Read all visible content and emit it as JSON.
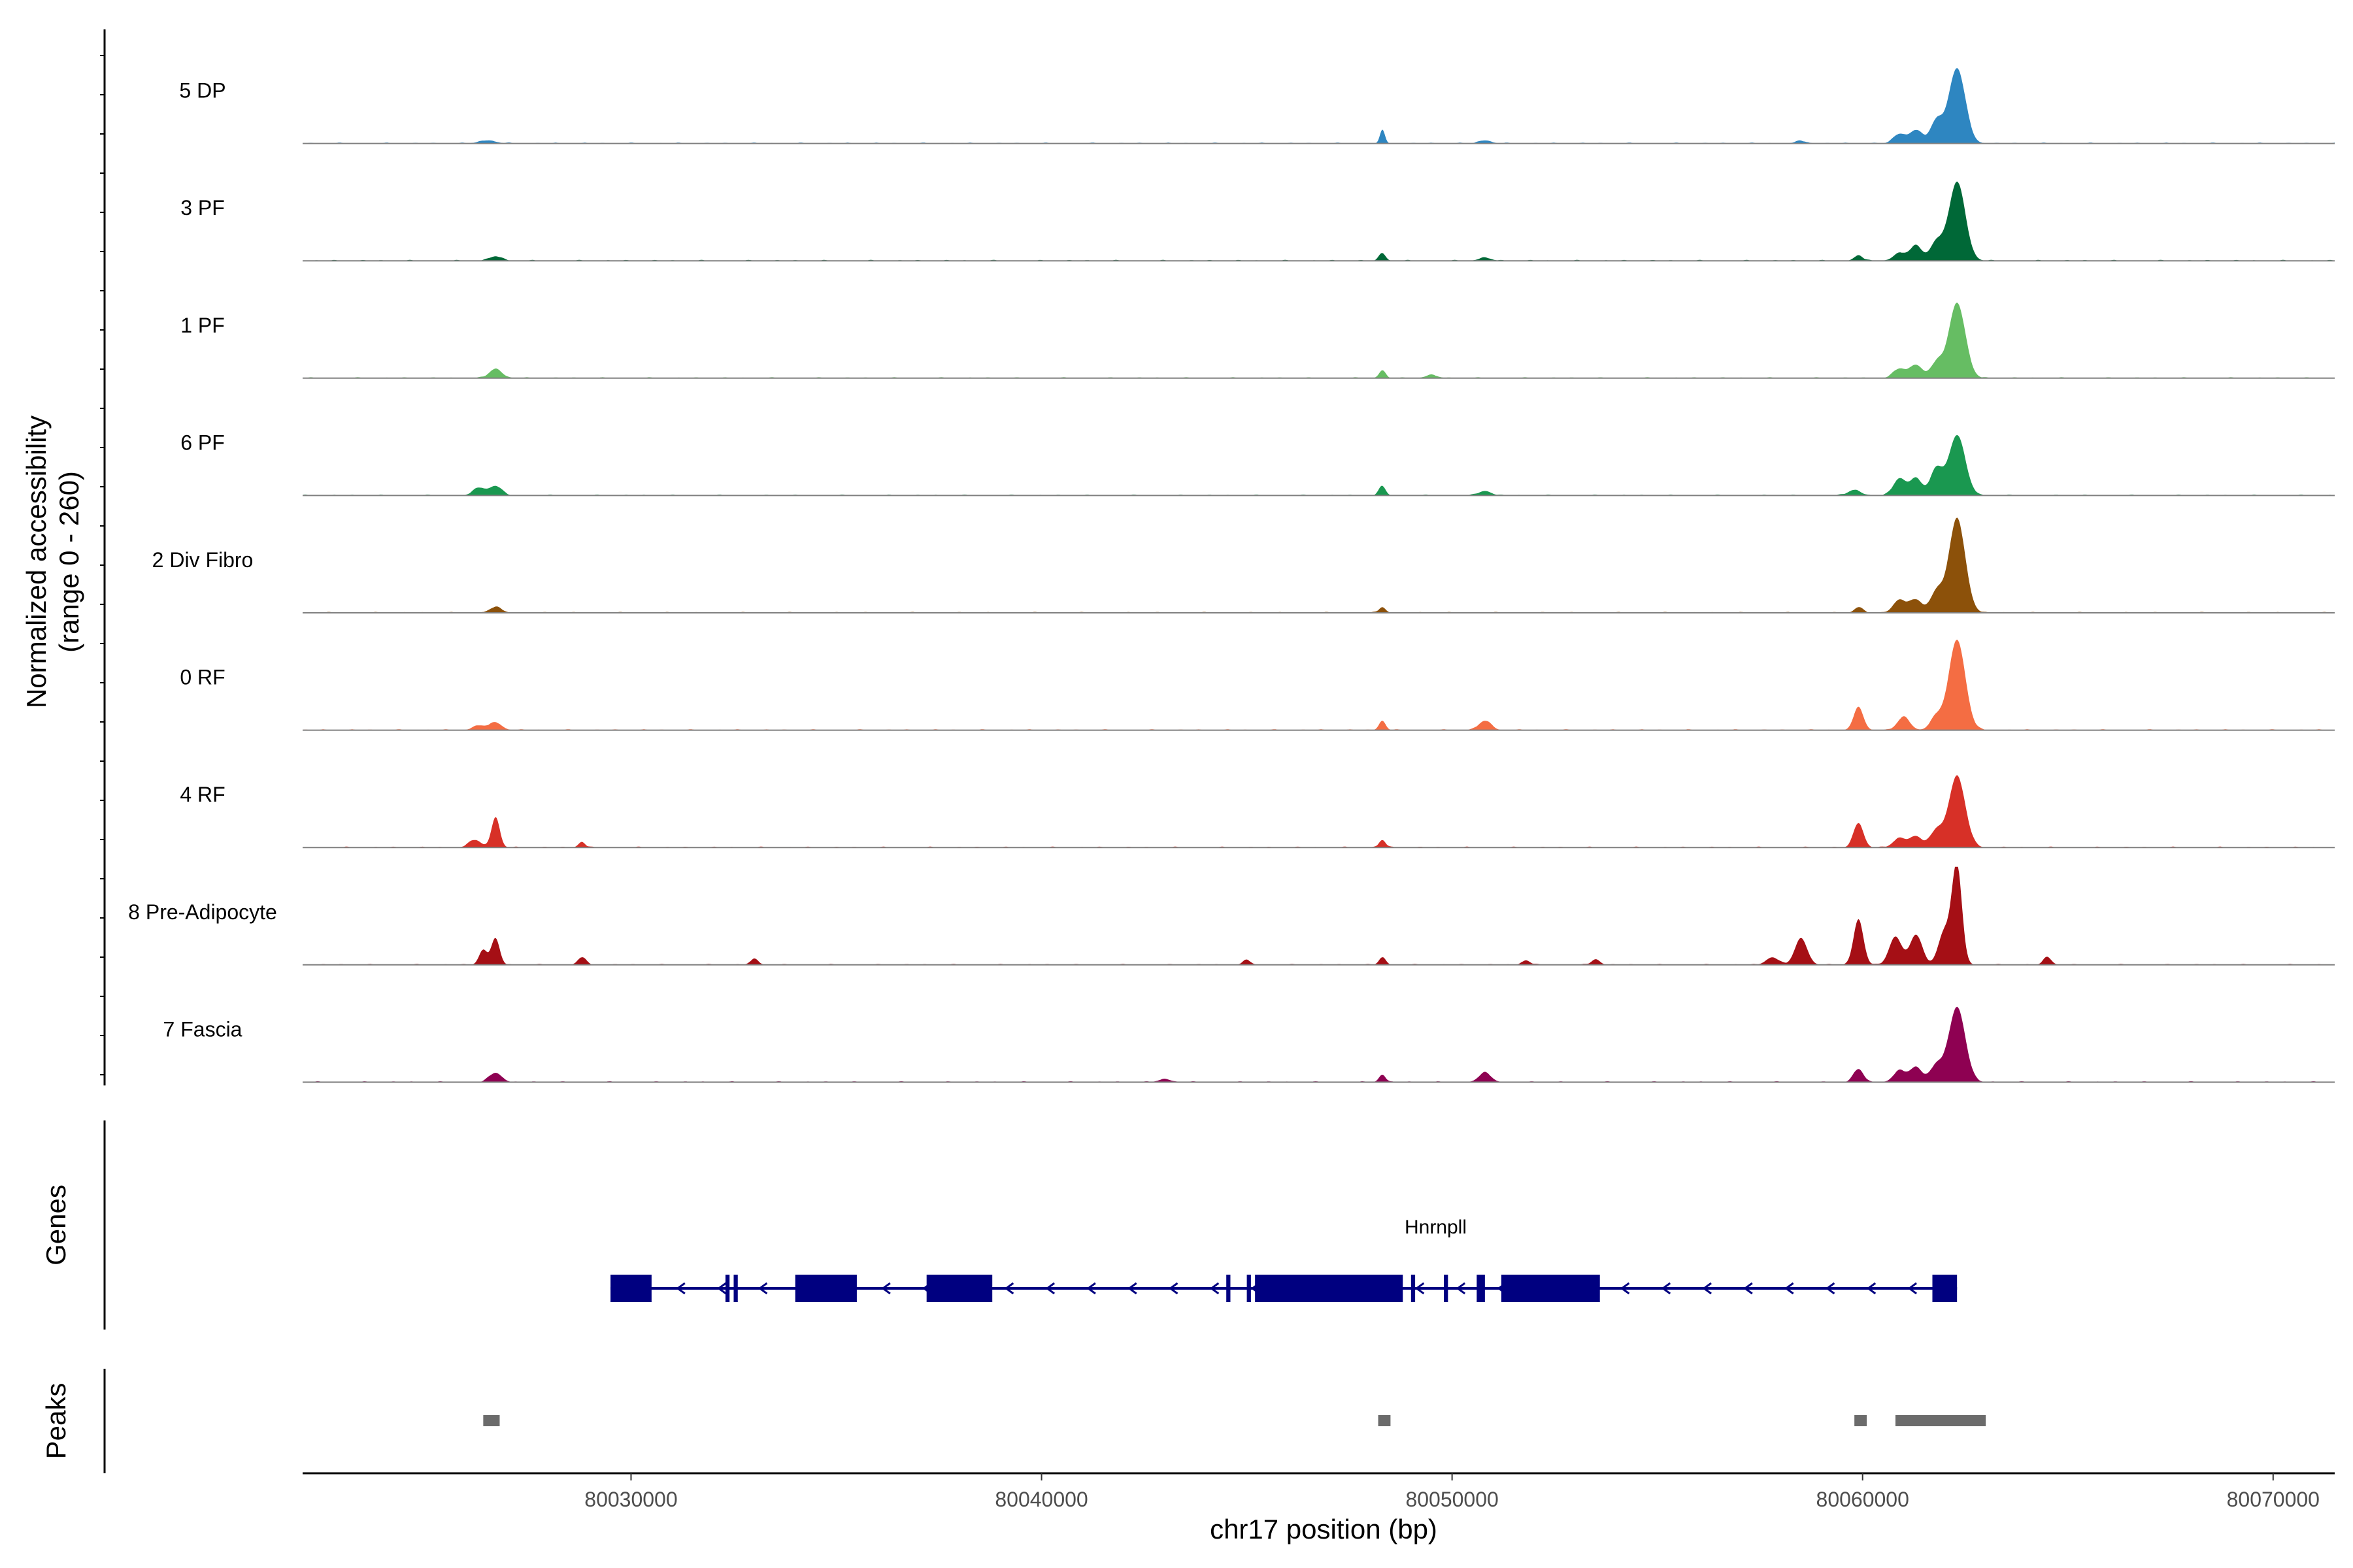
{
  "chart_data": {
    "type": "area",
    "title": "",
    "ylabel_line1": "Normalized accessibility",
    "ylabel_line2": "(range 0 - 260)",
    "y_range": [
      0,
      260
    ],
    "xlabel": "chr17 position (bp)",
    "xlim": [
      80022000,
      80071500
    ],
    "x_ticks": [
      80030000,
      80040000,
      80050000,
      80060000,
      80070000
    ],
    "x_tick_labels": [
      "80030000",
      "80040000",
      "80050000",
      "80060000",
      "80070000"
    ],
    "tracks": [
      {
        "name": "5 DP",
        "color": "#2E86C1",
        "peaks": [
          [
            80062300,
            200,
            200
          ],
          [
            80061800,
            60,
            150
          ],
          [
            80061300,
            35,
            150
          ],
          [
            80060900,
            25,
            150
          ],
          [
            80048300,
            35,
            60
          ],
          [
            80026500,
            8,
            200
          ],
          [
            80050800,
            8,
            150
          ],
          [
            80058500,
            6,
            150
          ]
        ]
      },
      {
        "name": "3 PF",
        "color": "#006837",
        "peaks": [
          [
            80062300,
            210,
            200
          ],
          [
            80061800,
            50,
            150
          ],
          [
            80061300,
            40,
            150
          ],
          [
            80060900,
            20,
            150
          ],
          [
            80059900,
            15,
            100
          ],
          [
            80048300,
            20,
            80
          ],
          [
            80026700,
            12,
            150
          ],
          [
            80050800,
            8,
            150
          ]
        ]
      },
      {
        "name": "1 PF",
        "color": "#66BD63",
        "peaks": [
          [
            80062300,
            200,
            200
          ],
          [
            80061800,
            40,
            150
          ],
          [
            80061300,
            35,
            150
          ],
          [
            80060900,
            25,
            150
          ],
          [
            80048300,
            20,
            80
          ],
          [
            80026700,
            25,
            150
          ],
          [
            80049500,
            8,
            150
          ]
        ]
      },
      {
        "name": "6 PF",
        "color": "#1A9850",
        "peaks": [
          [
            80062300,
            160,
            200
          ],
          [
            80061800,
            70,
            150
          ],
          [
            80061300,
            45,
            150
          ],
          [
            80060900,
            45,
            150
          ],
          [
            80059800,
            15,
            150
          ],
          [
            80048300,
            25,
            80
          ],
          [
            80026700,
            25,
            150
          ],
          [
            80026300,
            20,
            150
          ],
          [
            80050800,
            12,
            150
          ]
        ]
      },
      {
        "name": "2 Div Fibro",
        "color": "#8C510A",
        "peaks": [
          [
            80062300,
            250,
            200
          ],
          [
            80061800,
            55,
            150
          ],
          [
            80061300,
            35,
            150
          ],
          [
            80060900,
            35,
            150
          ],
          [
            80059900,
            15,
            100
          ],
          [
            80048300,
            15,
            80
          ],
          [
            80026700,
            15,
            150
          ]
        ]
      },
      {
        "name": "0 RF",
        "color": "#F46D43",
        "peaks": [
          [
            80062300,
            240,
            200
          ],
          [
            80061800,
            35,
            150
          ],
          [
            80061000,
            35,
            150
          ],
          [
            80059900,
            60,
            120
          ],
          [
            80048300,
            25,
            80
          ],
          [
            80050800,
            25,
            150
          ],
          [
            80026700,
            20,
            150
          ],
          [
            80026300,
            12,
            150
          ]
        ]
      },
      {
        "name": "4 RF",
        "color": "#D73027",
        "peaks": [
          [
            80062300,
            190,
            200
          ],
          [
            80061800,
            45,
            150
          ],
          [
            80061300,
            30,
            150
          ],
          [
            80060900,
            25,
            150
          ],
          [
            80059900,
            65,
            120
          ],
          [
            80048300,
            20,
            80
          ],
          [
            80026700,
            80,
            100
          ],
          [
            80026200,
            20,
            150
          ],
          [
            80028800,
            15,
            80
          ]
        ]
      },
      {
        "name": "8 Pre-Adipocyte",
        "color": "#A50F15",
        "peaks": [
          [
            80062300,
            260,
            120
          ],
          [
            80062000,
            90,
            150
          ],
          [
            80061300,
            80,
            150
          ],
          [
            80060800,
            75,
            150
          ],
          [
            80059900,
            120,
            120
          ],
          [
            80058500,
            70,
            150
          ],
          [
            80057800,
            20,
            150
          ],
          [
            80064500,
            20,
            100
          ],
          [
            80048300,
            20,
            80
          ],
          [
            80026700,
            70,
            100
          ],
          [
            80026400,
            40,
            100
          ],
          [
            80028800,
            20,
            100
          ],
          [
            80033000,
            15,
            100
          ],
          [
            80045000,
            12,
            100
          ],
          [
            80051800,
            12,
            100
          ],
          [
            80053500,
            15,
            100
          ]
        ]
      },
      {
        "name": "7 Fascia",
        "color": "#8E0152",
        "peaks": [
          [
            80062300,
            200,
            200
          ],
          [
            80061800,
            45,
            150
          ],
          [
            80061300,
            40,
            150
          ],
          [
            80060900,
            30,
            150
          ],
          [
            80059900,
            35,
            120
          ],
          [
            80048300,
            20,
            80
          ],
          [
            80050800,
            25,
            150
          ],
          [
            80026700,
            25,
            150
          ],
          [
            80043000,
            8,
            150
          ]
        ]
      }
    ],
    "genes_label": "Genes",
    "gene": {
      "name": "Hnrnpll",
      "color": "#000080",
      "strand": "-",
      "start": 80029500,
      "end": 80062300,
      "exons": [
        [
          80029500,
          80030500
        ],
        [
          80032300,
          80032400
        ],
        [
          80032500,
          80032600
        ],
        [
          80034000,
          80035500
        ],
        [
          80037200,
          80038800
        ],
        [
          80044500,
          80044600
        ],
        [
          80045000,
          80045100
        ],
        [
          80045200,
          80048800
        ],
        [
          80049000,
          80049100
        ],
        [
          80049800,
          80049900
        ],
        [
          80050600,
          80050800
        ],
        [
          80051200,
          80053600
        ],
        [
          80061700,
          80062300
        ]
      ]
    },
    "peaks_label": "Peaks",
    "peak_regions": [
      [
        80026400,
        80026800
      ],
      [
        80048200,
        80048500
      ],
      [
        80059800,
        80060100
      ],
      [
        80060800,
        80063000
      ]
    ]
  }
}
